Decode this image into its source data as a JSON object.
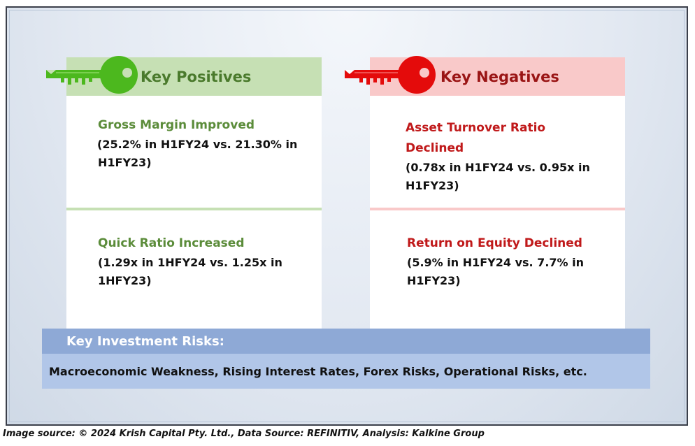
{
  "positives": {
    "header": "Key Positives",
    "items": [
      {
        "title": "Gross Margin Improved",
        "detail_line1": "(25.2% in H1FY24 vs. 21.30% in",
        "detail_line2": "H1FY23)"
      },
      {
        "title": "Quick Ratio Increased",
        "detail_line1": "(1.29x in 1HFY24 vs. 1.25x in",
        "detail_line2": "1HFY23)"
      }
    ]
  },
  "negatives": {
    "header": "Key Negatives",
    "items": [
      {
        "title_line1": "Asset Turnover Ratio",
        "title_line2": "Declined",
        "detail_line1": "(0.78x in H1FY24 vs. 0.95x in",
        "detail_line2": "H1FY23)"
      },
      {
        "title": "Return on Equity Declined",
        "detail_line1": "(5.9% in H1FY24 vs. 7.7% in",
        "detail_line2": "H1FY23)"
      }
    ]
  },
  "risks": {
    "header": "Key Investment Risks:",
    "body": "Macroeconomic Weakness, Rising Interest Rates, Forex Risks, Operational Risks, etc."
  },
  "footer": "Image source: © 2024 Krish Capital Pty. Ltd., Data Source: REFINITIV, Analysis: Kalkine Group",
  "colors": {
    "positive_accent": "#5b8c3a",
    "positive_bg": "#c6e0b4",
    "negative_accent": "#c0191a",
    "negative_bg": "#f9c9c9",
    "risk_header_bg": "#8ea9d6",
    "risk_body_bg": "#b1c6e8"
  },
  "icons": {
    "positive": "key-icon",
    "negative": "key-icon"
  }
}
